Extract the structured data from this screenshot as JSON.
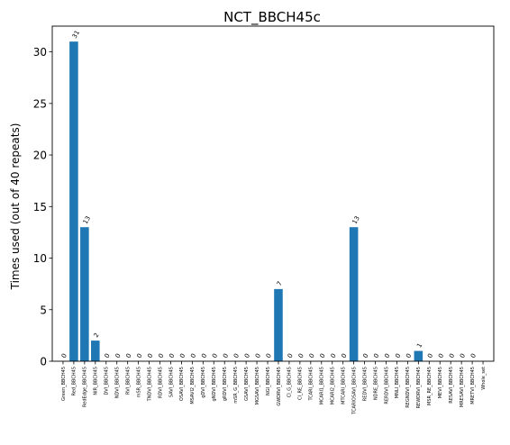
{
  "chart_data": {
    "type": "bar",
    "title": "NCT_BBCH45c",
    "xlabel": "",
    "ylabel": "Times used (out of 40 repeats)",
    "ylim": [
      0,
      32.5
    ],
    "yticks": [
      0,
      5,
      10,
      15,
      20,
      25,
      30
    ],
    "grid": false,
    "bar_color": "#1f77b4",
    "categories": [
      "Green_BBCH45",
      "Red_BBCH45",
      "RedEdge_BBCH45",
      "NIR_BBCH45",
      "DVI_BBCH45",
      "NDVI_BBCH45",
      "RVI_BBCH45",
      "mSR_BBCH45",
      "TNDVI_BBCH45",
      "RDVI_BBCH45",
      "SAVI_BBCH45",
      "OSAVI_BBCH45",
      "MSAVI2_BBCH45",
      "gDVI_BBCH45",
      "gNDVI_BBCH45",
      "gRDVI_BBCH45",
      "mSR_G_BBCH45",
      "GSAVI_BBCH45",
      "MGSAVI_BBCH45",
      "NGI_BBCH45",
      "GWDRVI_BBCH45",
      "CI_G_BBCH45",
      "CI_RE_BBCH45",
      "TCARI_BBCH45",
      "MCARI1_BBCH45",
      "MCARI2_BBCH45",
      "MTCARI_BBCH45",
      "TCARIOSAVI_BBCH45",
      "REDVI_BBCH45",
      "NDRE_BBCH45",
      "RERDVI_BBCH45",
      "MNLI_BBCH45",
      "REGNDVI_BBCH45",
      "REWDRVI_BBCH45",
      "MSR_RE_BBCH45",
      "MEVI_BBCH45",
      "RESAVI_BBCH45",
      "MRESAVI_BBCH45",
      "MRETVI_BBCH45",
      "Whole_set"
    ],
    "values": [
      0,
      31,
      13,
      2,
      0,
      0,
      0,
      0,
      0,
      0,
      0,
      0,
      0,
      0,
      0,
      0,
      0,
      0,
      0,
      0,
      7,
      0,
      0,
      0,
      0,
      0,
      0,
      13,
      0,
      0,
      0,
      0,
      0,
      1,
      0,
      0,
      0,
      0,
      0,
      0
    ],
    "data_labels": [
      "0",
      "31",
      "13",
      "2",
      "0",
      "0",
      "0",
      "0",
      "0",
      "0",
      "0",
      "0",
      "0",
      "0",
      "0",
      "0",
      "0",
      "0",
      "0",
      "0",
      "7",
      "0",
      "0",
      "0",
      "0",
      "0",
      "0",
      "13",
      "0",
      "0",
      "0",
      "0",
      "0",
      "1",
      "0",
      "0",
      "0",
      "0",
      "0",
      ""
    ]
  }
}
